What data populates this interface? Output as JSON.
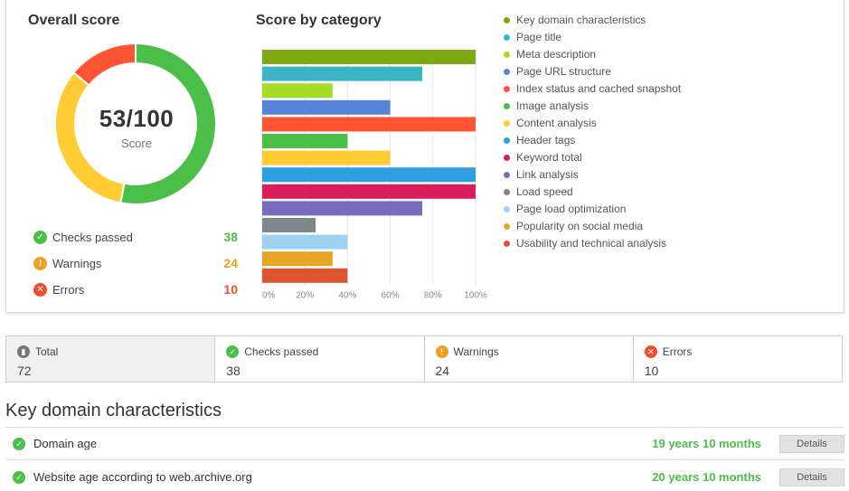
{
  "overall": {
    "title": "Overall score",
    "score_text": "53/100",
    "score_label": "Score",
    "score_value": 53,
    "donut_segments": [
      {
        "name": "passed",
        "fraction": 0.53,
        "color": "#4bbf48"
      },
      {
        "name": "warnings",
        "fraction": 0.33,
        "color": "#ffcc33"
      },
      {
        "name": "errors",
        "fraction": 0.14,
        "color": "#ff5533"
      }
    ]
  },
  "stats": {
    "passed": {
      "label": "Checks passed",
      "value": "38",
      "color": "#4bbf48",
      "icon": "check-icon"
    },
    "warnings": {
      "label": "Warnings",
      "value": "24",
      "color": "#f0a020",
      "icon": "exclamation-icon"
    },
    "errors": {
      "label": "Errors",
      "value": "10",
      "color": "#f04e2e",
      "icon": "x-icon"
    }
  },
  "chart_data": {
    "type": "bar",
    "orientation": "horizontal",
    "title": "Score by category",
    "categories": [
      "Key domain characteristics",
      "Page title",
      "Meta description",
      "Page URL structure",
      "Index status and cached snapshot",
      "Image analysis",
      "Content analysis",
      "Header tags",
      "Keyword total",
      "Link analysis",
      "Load speed",
      "Page load optimization",
      "Popularity on social media",
      "Usability and technical analysis"
    ],
    "values": [
      100,
      75,
      33,
      60,
      100,
      40,
      60,
      100,
      100,
      75,
      25,
      40,
      33,
      40
    ],
    "colors": [
      "#7ea80f",
      "#3bb4c8",
      "#a6dc26",
      "#5585d8",
      "#ff5533",
      "#4bbf48",
      "#ffcc33",
      "#2d9ee0",
      "#d81f5c",
      "#7a6bbf",
      "#7d878c",
      "#9fd2f2",
      "#e6a621",
      "#de5430"
    ],
    "xticks": [
      "0%",
      "20%",
      "40%",
      "60%",
      "80%",
      "100%"
    ],
    "xlim": [
      0,
      100
    ],
    "grid": true,
    "legend": "right"
  },
  "summary": [
    {
      "label": "Total",
      "value": "72",
      "icon": "chart-icon",
      "color": "#777777"
    },
    {
      "label": "Checks passed",
      "value": "38",
      "icon": "check-icon",
      "color": "#4bbf48"
    },
    {
      "label": "Warnings",
      "value": "24",
      "icon": "exclamation-icon",
      "color": "#f0a020"
    },
    {
      "label": "Errors",
      "value": "10",
      "icon": "x-icon",
      "color": "#f04e2e"
    }
  ],
  "key_domain": {
    "title": "Key domain characteristics",
    "rows": [
      {
        "label": "Domain age",
        "value": "19 years 10 months",
        "button": "Details"
      },
      {
        "label": "Website age according to web.archive.org",
        "value": "20 years 10 months",
        "button": "Details"
      }
    ]
  }
}
